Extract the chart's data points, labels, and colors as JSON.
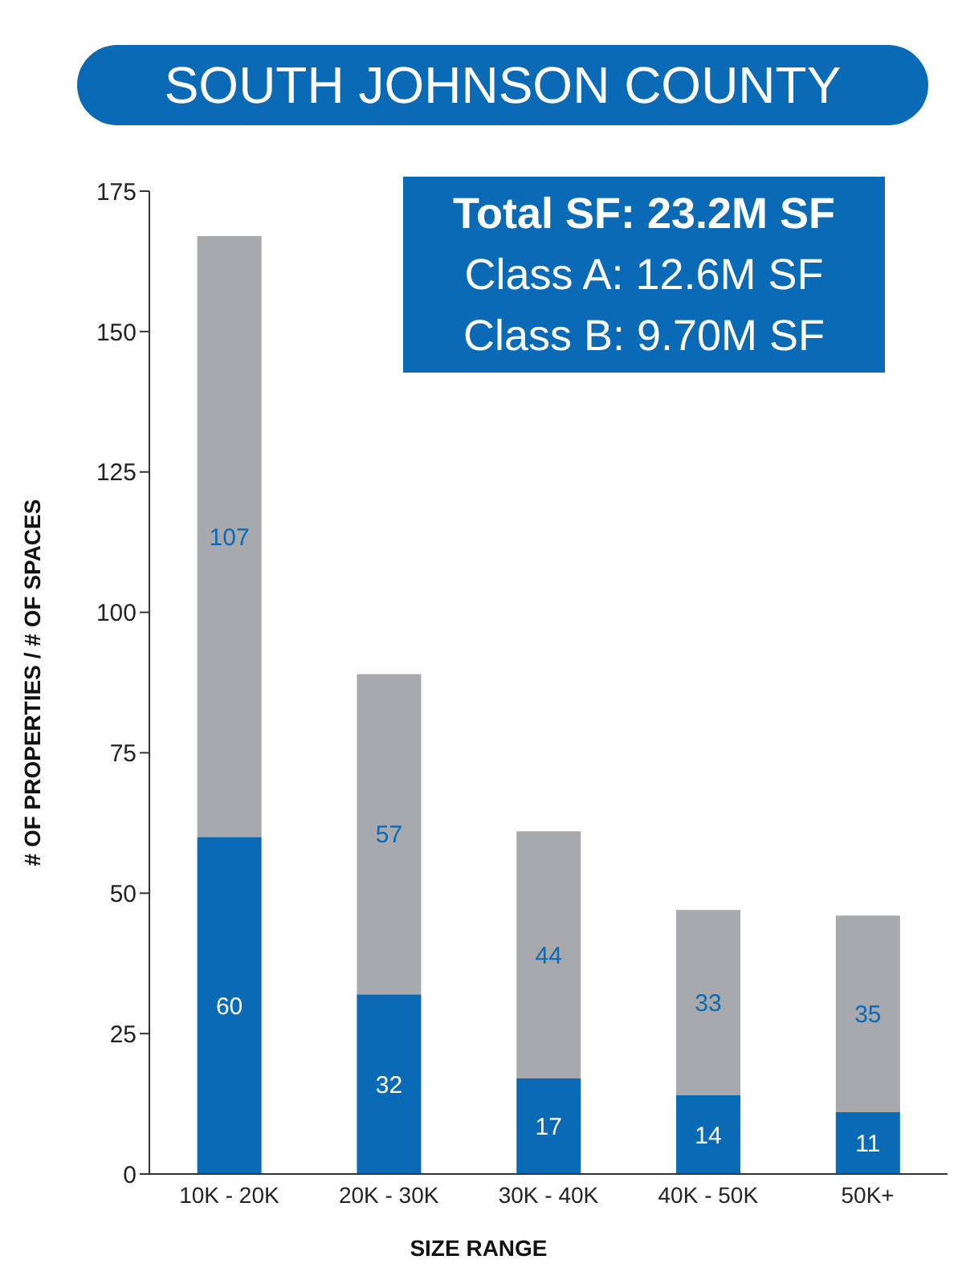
{
  "chart_data": {
    "type": "bar",
    "title": "SOUTH JOHNSON COUNTY",
    "xlabel": "SIZE RANGE",
    "ylabel": "# OF PROPERTIES / # OF SPACES",
    "categories": [
      "10K - 20K",
      "20K - 30K",
      "30K - 40K",
      "40K - 50K",
      "50K+"
    ],
    "stacked": true,
    "series": [
      {
        "color": "#0a6ab6",
        "values": [
          60,
          32,
          17,
          14,
          11
        ]
      },
      {
        "color": "#a7a9ac",
        "values": [
          107,
          57,
          44,
          33,
          35
        ]
      }
    ],
    "ylim": [
      0,
      175
    ],
    "yticks": [
      0,
      25,
      50,
      75,
      100,
      125,
      150,
      175
    ],
    "data_labels": true,
    "grid": false,
    "legend": false,
    "annotations": [
      "Total SF: 23.2M SF",
      "Class A: 12.6M SF",
      "Class B: 9.70M SF"
    ]
  }
}
